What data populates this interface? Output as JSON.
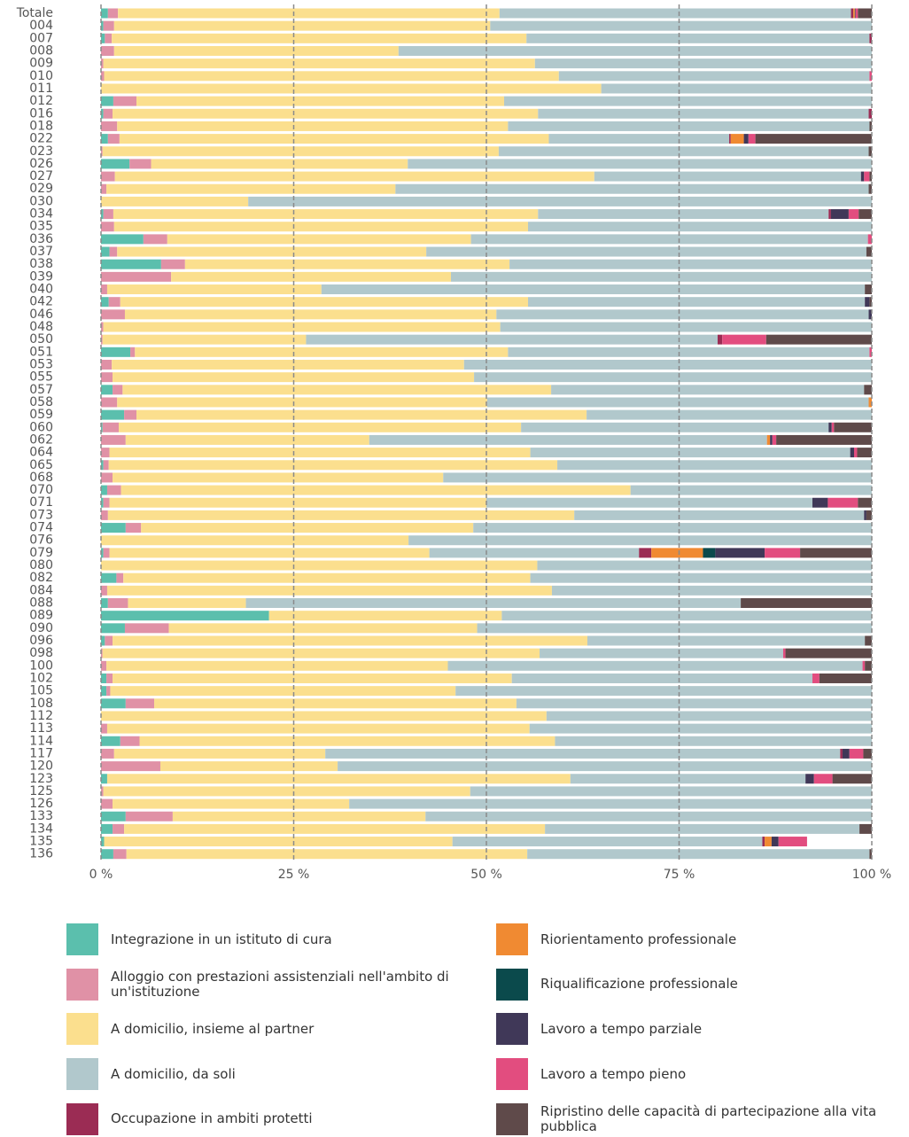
{
  "chart_data": {
    "type": "bar",
    "orientation": "horizontal",
    "stacked": true,
    "categories": [
      "Totale",
      "004",
      "007",
      "008",
      "009",
      "010",
      "011",
      "012",
      "016",
      "018",
      "022",
      "023",
      "026",
      "027",
      "029",
      "030",
      "034",
      "035",
      "036",
      "037",
      "038",
      "039",
      "040",
      "042",
      "046",
      "048",
      "050",
      "051",
      "053",
      "055",
      "057",
      "058",
      "059",
      "060",
      "062",
      "064",
      "065",
      "068",
      "070",
      "071",
      "073",
      "074",
      "076",
      "079",
      "080",
      "082",
      "084",
      "088",
      "089",
      "090",
      "096",
      "098",
      "100",
      "102",
      "105",
      "108",
      "112",
      "113",
      "114",
      "117",
      "120",
      "123",
      "125",
      "126",
      "133",
      "134",
      "135",
      "136"
    ],
    "series": [
      {
        "name": "Integrazione in un istituto di cura",
        "color": "#5bbfad",
        "values": [
          0.9,
          0.3,
          0.5,
          0,
          0,
          0,
          0,
          1.6,
          0.3,
          0,
          0.9,
          0,
          3.7,
          0,
          0,
          0,
          0.3,
          0,
          5.5,
          1.1,
          7.8,
          0,
          0,
          1.0,
          0,
          0,
          0,
          3.8,
          0,
          0,
          1.5,
          0,
          3.0,
          0.2,
          0,
          0,
          0.3,
          0,
          0.8,
          0.3,
          0,
          3.2,
          0,
          0.3,
          0,
          2.0,
          0,
          0.9,
          21.8,
          3.1,
          0.5,
          0,
          0,
          0.7,
          0.7,
          3.2,
          0,
          0,
          2.5,
          0,
          0,
          0.8,
          0,
          0,
          3.2,
          1.5,
          0.4,
          1.6
        ]
      },
      {
        "name": "Alloggio con prestazioni assistenziali nell'ambito di un'istituzione",
        "color": "#e091a6",
        "values": [
          1.3,
          1.4,
          0.9,
          1.7,
          0.3,
          0.4,
          0,
          3.0,
          1.2,
          2.1,
          1.5,
          0.2,
          2.8,
          1.8,
          0.7,
          0,
          1.3,
          1.7,
          3.1,
          1.0,
          3.1,
          9.1,
          0.8,
          1.5,
          3.1,
          0.3,
          0.2,
          0.6,
          1.4,
          1.5,
          1.3,
          2.1,
          1.6,
          2.1,
          3.2,
          1.1,
          0.7,
          1.5,
          1.8,
          0.8,
          0.9,
          2.0,
          0,
          0.8,
          0,
          0.9,
          0.8,
          2.6,
          0,
          5.7,
          1.0,
          0.2,
          0.7,
          0.8,
          0.5,
          3.7,
          0,
          0.8,
          2.5,
          1.7,
          7.7,
          0,
          0.3,
          1.5,
          6.1,
          1.5,
          0,
          1.7
        ]
      },
      {
        "name": "A domicilio, insieme al partner",
        "color": "#fbdf8e",
        "values": [
          49.5,
          48.8,
          53.8,
          36.9,
          56.0,
          59.0,
          64.9,
          47.7,
          55.2,
          50.7,
          55.7,
          51.4,
          33.3,
          62.2,
          37.5,
          19.1,
          55.1,
          53.7,
          39.4,
          40.1,
          42.1,
          36.3,
          27.8,
          52.9,
          48.2,
          51.5,
          26.4,
          48.4,
          45.7,
          46.9,
          55.6,
          48.0,
          58.4,
          52.2,
          31.6,
          54.6,
          58.2,
          42.9,
          66.1,
          48.9,
          60.5,
          43.1,
          39.9,
          41.5,
          56.6,
          52.8,
          57.7,
          15.3,
          30.2,
          40.0,
          61.6,
          56.7,
          44.3,
          51.8,
          44.8,
          47.0,
          57.8,
          54.8,
          53.9,
          27.4,
          23.0,
          60.1,
          47.6,
          30.7,
          32.8,
          54.6,
          45.2,
          52.0
        ]
      },
      {
        "name": "A domicilio, da soli",
        "color": "#b1c8cc",
        "values": [
          45.6,
          49.5,
          44.5,
          61.4,
          43.7,
          40.3,
          35.1,
          47.7,
          42.9,
          46.9,
          23.4,
          48.0,
          60.2,
          34.6,
          61.4,
          80.9,
          37.7,
          44.6,
          51.5,
          57.1,
          47.0,
          54.6,
          70.5,
          43.7,
          48.3,
          48.2,
          53.4,
          46.9,
          52.9,
          51.6,
          40.6,
          49.5,
          37.0,
          39.9,
          51.6,
          41.5,
          40.8,
          55.6,
          31.3,
          42.3,
          37.6,
          51.7,
          60.1,
          27.2,
          43.4,
          44.3,
          41.5,
          64.2,
          48.0,
          51.2,
          36.0,
          31.6,
          53.8,
          39.0,
          54.0,
          46.1,
          42.2,
          44.4,
          41.1,
          66.8,
          69.3,
          30.5,
          52.1,
          67.8,
          57.9,
          40.8,
          40.2,
          44.4
        ]
      },
      {
        "name": "Occupazione in ambiti protetti",
        "color": "#9b2c54",
        "values": [
          0.3,
          0,
          0.3,
          0,
          0,
          0,
          0,
          0,
          0.4,
          0,
          0.2,
          0,
          0,
          0,
          0,
          0,
          0.3,
          0,
          0,
          0,
          0,
          0,
          0,
          0,
          0,
          0,
          0.6,
          0,
          0,
          0,
          0,
          0,
          0,
          0,
          0,
          0,
          0,
          0,
          0,
          0,
          0,
          0,
          0,
          1.6,
          0,
          0,
          0,
          0,
          0,
          0,
          0,
          0,
          0,
          0,
          0,
          0,
          0,
          0,
          0,
          0.3,
          0,
          0,
          0,
          0,
          0,
          0,
          0.3,
          0
        ]
      },
      {
        "name": "Riorientamento professionale",
        "color": "#f08a32",
        "values": [
          0.2,
          0,
          0,
          0,
          0,
          0,
          0,
          0,
          0,
          0,
          1.7,
          0,
          0,
          0,
          0,
          0,
          0,
          0,
          0,
          0,
          0,
          0,
          0,
          0,
          0,
          0,
          0,
          0,
          0,
          0,
          0,
          0.4,
          0,
          0,
          0.4,
          0,
          0,
          0,
          0,
          0,
          0,
          0,
          0,
          6.7,
          0,
          0,
          0,
          0,
          0,
          0,
          0,
          0,
          0,
          0,
          0,
          0,
          0,
          0,
          0,
          0,
          0,
          0,
          0,
          0,
          0,
          0,
          0.9,
          0
        ]
      },
      {
        "name": "Riqualificazione professionale",
        "color": "#0b4a4c",
        "values": [
          0,
          0,
          0,
          0,
          0,
          0,
          0,
          0,
          0,
          0,
          0,
          0,
          0,
          0,
          0,
          0,
          0,
          0,
          0,
          0,
          0,
          0,
          0,
          0,
          0,
          0,
          0,
          0,
          0,
          0,
          0,
          0,
          0,
          0,
          0,
          0,
          0,
          0,
          0,
          0,
          0,
          0,
          0,
          1.6,
          0,
          0,
          0,
          0,
          0,
          0,
          0,
          0,
          0,
          0,
          0,
          0,
          0,
          0,
          0,
          0,
          0,
          0,
          0,
          0,
          0,
          0,
          0,
          0
        ]
      },
      {
        "name": "Lavoro a tempo parziale",
        "color": "#403858",
        "values": [
          0.1,
          0,
          0,
          0,
          0,
          0,
          0,
          0,
          0,
          0,
          0.6,
          0,
          0,
          0.4,
          0,
          0,
          2.3,
          0,
          0,
          0,
          0,
          0,
          0,
          0.6,
          0.4,
          0,
          0,
          0,
          0,
          0,
          0,
          0,
          0,
          0.4,
          0.3,
          0.5,
          0,
          0,
          0,
          2.0,
          0.3,
          0,
          0,
          6.4,
          0,
          0,
          0,
          0,
          0,
          0,
          0,
          0,
          0,
          0,
          0,
          0,
          0,
          0,
          0,
          0.9,
          0,
          1.1,
          0,
          0,
          0,
          0,
          0.9,
          0
        ]
      },
      {
        "name": "Lavoro a tempo pieno",
        "color": "#e24d7f",
        "values": [
          0.3,
          0,
          0,
          0,
          0,
          0.3,
          0,
          0,
          0,
          0,
          0.9,
          0,
          0,
          0.7,
          0,
          0,
          1.3,
          0,
          0.5,
          0,
          0,
          0,
          0,
          0,
          0,
          0,
          5.7,
          0.3,
          0,
          0,
          0,
          0,
          0,
          0.3,
          0.5,
          0.4,
          0,
          0,
          0,
          3.9,
          0,
          0,
          0,
          4.6,
          0,
          0,
          0,
          0,
          0,
          0,
          0,
          0.3,
          0.3,
          0.9,
          0,
          0,
          0,
          0,
          0,
          1.8,
          0,
          2.4,
          0,
          0,
          0,
          0,
          3.7,
          0
        ]
      },
      {
        "name": "Ripristino delle capacità di partecipazione alla vita pubblica",
        "color": "#5f4a4a",
        "values": [
          1.8,
          0,
          0,
          0,
          0,
          0,
          0,
          0,
          0,
          0.3,
          15.1,
          0.4,
          0,
          0.3,
          0.4,
          0,
          1.7,
          0,
          0,
          0.7,
          0,
          0,
          0.9,
          0.3,
          0,
          0,
          13.7,
          0,
          0,
          0,
          1.0,
          0,
          0,
          4.9,
          12.4,
          1.9,
          0,
          0,
          0,
          1.8,
          0.7,
          0,
          0,
          9.3,
          0,
          0,
          0,
          17.0,
          0,
          0,
          0.9,
          11.2,
          0.9,
          6.8,
          0,
          0,
          0,
          0,
          0,
          1.1,
          0,
          5.1,
          0,
          0,
          0,
          1.6,
          0,
          0.3
        ]
      }
    ],
    "xlim": [
      0,
      100
    ],
    "xticks": [
      {
        "value": 0,
        "label": "0 %"
      },
      {
        "value": 25,
        "label": "25 %"
      },
      {
        "value": 50,
        "label": "50 %"
      },
      {
        "value": 75,
        "label": "75 %"
      },
      {
        "value": 100,
        "label": "100 %"
      }
    ],
    "grid": true,
    "grid_color": "#8a8a8a",
    "legend": "bottom"
  }
}
